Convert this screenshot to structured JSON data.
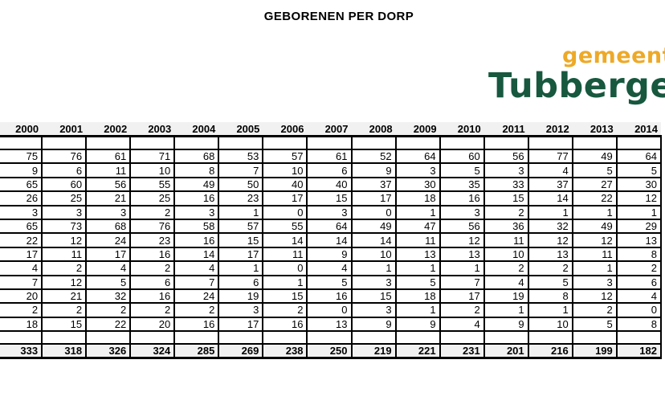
{
  "title": "GEBORENEN PER DORP",
  "logo": {
    "top_text": "gemeente",
    "bottom_text": "Tubbergen",
    "top_color": "#EDA928",
    "bottom_color": "#17583F"
  },
  "table": {
    "years": [
      "2000",
      "2001",
      "2002",
      "2003",
      "2004",
      "2005",
      "2006",
      "2007",
      "2008",
      "2009",
      "2010",
      "2011",
      "2012",
      "2013",
      "2014"
    ],
    "rows": [
      [
        75,
        76,
        61,
        71,
        68,
        53,
        57,
        61,
        52,
        64,
        60,
        56,
        77,
        49,
        64
      ],
      [
        9,
        6,
        11,
        10,
        8,
        7,
        10,
        6,
        9,
        3,
        5,
        3,
        4,
        5,
        5
      ],
      [
        65,
        60,
        56,
        55,
        49,
        50,
        40,
        40,
        37,
        30,
        35,
        33,
        37,
        27,
        30
      ],
      [
        26,
        25,
        21,
        25,
        16,
        23,
        17,
        15,
        17,
        18,
        16,
        15,
        14,
        22,
        12
      ],
      [
        3,
        3,
        3,
        2,
        3,
        1,
        0,
        3,
        0,
        1,
        3,
        2,
        1,
        1,
        1
      ],
      [
        65,
        73,
        68,
        76,
        58,
        57,
        55,
        64,
        49,
        47,
        56,
        36,
        32,
        49,
        29
      ],
      [
        22,
        12,
        24,
        23,
        16,
        15,
        14,
        14,
        14,
        11,
        12,
        11,
        12,
        12,
        13
      ],
      [
        17,
        11,
        17,
        16,
        14,
        17,
        11,
        9,
        10,
        13,
        13,
        10,
        13,
        11,
        8
      ],
      [
        4,
        2,
        4,
        2,
        4,
        1,
        0,
        4,
        1,
        1,
        1,
        2,
        2,
        1,
        2
      ],
      [
        7,
        12,
        5,
        6,
        7,
        6,
        1,
        5,
        3,
        5,
        7,
        4,
        5,
        3,
        6
      ],
      [
        20,
        21,
        32,
        16,
        24,
        19,
        15,
        16,
        15,
        18,
        17,
        19,
        8,
        12,
        4
      ],
      [
        2,
        2,
        2,
        2,
        2,
        3,
        2,
        0,
        3,
        1,
        2,
        1,
        1,
        2,
        0
      ],
      [
        18,
        15,
        22,
        20,
        16,
        17,
        16,
        13,
        9,
        9,
        4,
        9,
        10,
        5,
        8
      ]
    ],
    "totals": [
      333,
      318,
      326,
      324,
      285,
      269,
      238,
      250,
      219,
      221,
      231,
      201,
      216,
      199,
      182
    ],
    "header_bg": "#F1F1F1",
    "total_bg": "#F1F1F1",
    "border_color": "#000000"
  }
}
